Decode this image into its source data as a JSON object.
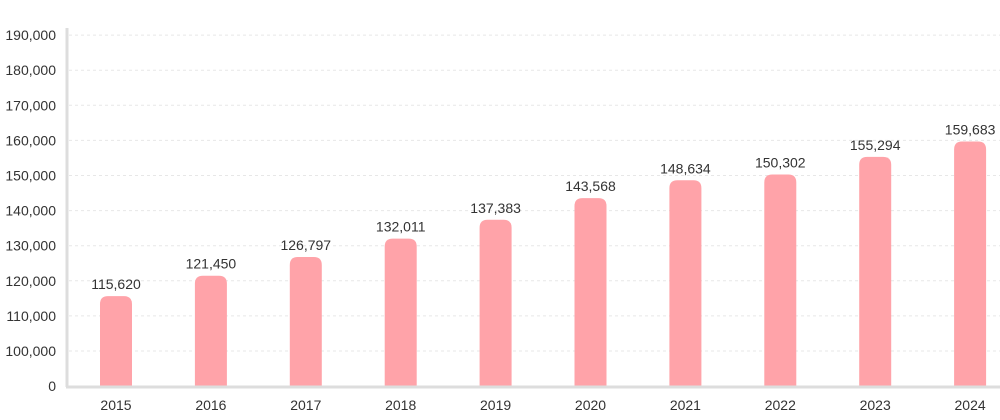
{
  "chart_data": {
    "type": "bar",
    "title": "",
    "xlabel": "",
    "ylabel": "",
    "categories": [
      "2015",
      "2016",
      "2017",
      "2018",
      "2019",
      "2020",
      "2021",
      "2022",
      "2023",
      "2024"
    ],
    "values": [
      115620,
      121450,
      126797,
      132011,
      137383,
      143568,
      148634,
      150302,
      155294,
      159683
    ],
    "value_labels": [
      "115,620",
      "121,450",
      "126,797",
      "132,011",
      "137,383",
      "143,568",
      "148,634",
      "150,302",
      "155,294",
      "159,683"
    ],
    "y_ticks": [
      0,
      100000,
      110000,
      120000,
      130000,
      140000,
      150000,
      160000,
      170000,
      180000,
      190000
    ],
    "y_tick_labels": [
      "0",
      "100,000",
      "110,000",
      "120,000",
      "130,000",
      "140,000",
      "150,000",
      "160,000",
      "170,000",
      "180,000",
      "190,000"
    ],
    "ylim": [
      0,
      190000
    ],
    "axis_break": "0 to 100,000 compressed to one tick interval",
    "grid": true,
    "legend": "none",
    "bar_color": "#ffa3a9"
  }
}
